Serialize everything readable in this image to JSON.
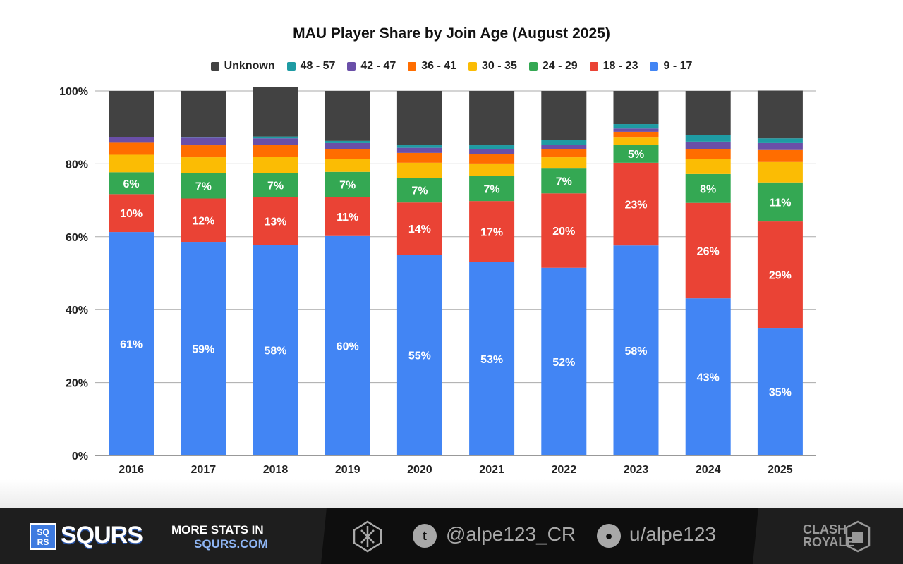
{
  "chart_data": {
    "type": "bar",
    "stacked": true,
    "title": "MAU Player Share by Join Age (August 2025)",
    "categories": [
      "2016",
      "2017",
      "2018",
      "2019",
      "2020",
      "2021",
      "2022",
      "2023",
      "2024",
      "2025"
    ],
    "ylim": [
      0,
      100
    ],
    "yticks": [
      "0%",
      "20%",
      "40%",
      "60%",
      "80%",
      "100%"
    ],
    "grid": true,
    "legend_position": "top",
    "series": [
      {
        "name": "9 - 17",
        "color": "#4285f4",
        "values": [
          61.3,
          58.6,
          57.8,
          60.2,
          55.1,
          53.0,
          51.5,
          57.6,
          43.1,
          35.0
        ],
        "labels": [
          "61%",
          "59%",
          "58%",
          "60%",
          "55%",
          "53%",
          "52%",
          "58%",
          "43%",
          "35%"
        ]
      },
      {
        "name": "18 - 23",
        "color": "#ea4335",
        "values": [
          10.4,
          11.9,
          13.1,
          10.7,
          14.3,
          16.8,
          20.4,
          22.7,
          26.2,
          29.2
        ],
        "labels": [
          "10%",
          "12%",
          "13%",
          "11%",
          "14%",
          "17%",
          "20%",
          "23%",
          "26%",
          "29%"
        ]
      },
      {
        "name": "24 - 29",
        "color": "#34a853",
        "values": [
          6.0,
          6.9,
          6.6,
          6.9,
          6.8,
          6.8,
          6.8,
          5.0,
          7.9,
          10.7
        ],
        "labels": [
          "6%",
          "7%",
          "7%",
          "7%",
          "7%",
          "7%",
          "7%",
          "5%",
          "8%",
          "11%"
        ]
      },
      {
        "name": "30 - 35",
        "color": "#fbbc04",
        "values": [
          4.8,
          4.4,
          4.4,
          3.6,
          4.1,
          3.5,
          3.1,
          1.9,
          4.2,
          5.6
        ]
      },
      {
        "name": "36 - 41",
        "color": "#ff6d00",
        "values": [
          3.3,
          3.3,
          3.3,
          2.6,
          2.7,
          2.5,
          2.2,
          1.6,
          2.6,
          3.3
        ]
      },
      {
        "name": "42 - 47",
        "color": "#6a4fa8",
        "values": [
          1.5,
          2.1,
          1.8,
          1.7,
          1.4,
          1.5,
          1.3,
          0.9,
          2.1,
          1.9
        ]
      },
      {
        "name": "48 - 57",
        "color": "#1e9ba3",
        "values": [
          0.0,
          0.2,
          0.5,
          0.6,
          0.7,
          1.0,
          1.2,
          1.2,
          1.9,
          1.3
        ]
      },
      {
        "name": "Unknown",
        "color": "#424242",
        "values": [
          12.7,
          12.6,
          13.5,
          13.7,
          14.9,
          14.9,
          13.5,
          9.1,
          12.0,
          13.1
        ]
      }
    ]
  },
  "footer": {
    "logo_letters": "SQ RS",
    "brand": "SQURS",
    "more_stats": "MORE STATS IN",
    "site": "SQURS.COM",
    "twitter_handle": "@alpe123_CR",
    "reddit_handle": "u/alpe123",
    "game_logo": "CLASH ROYALE"
  }
}
